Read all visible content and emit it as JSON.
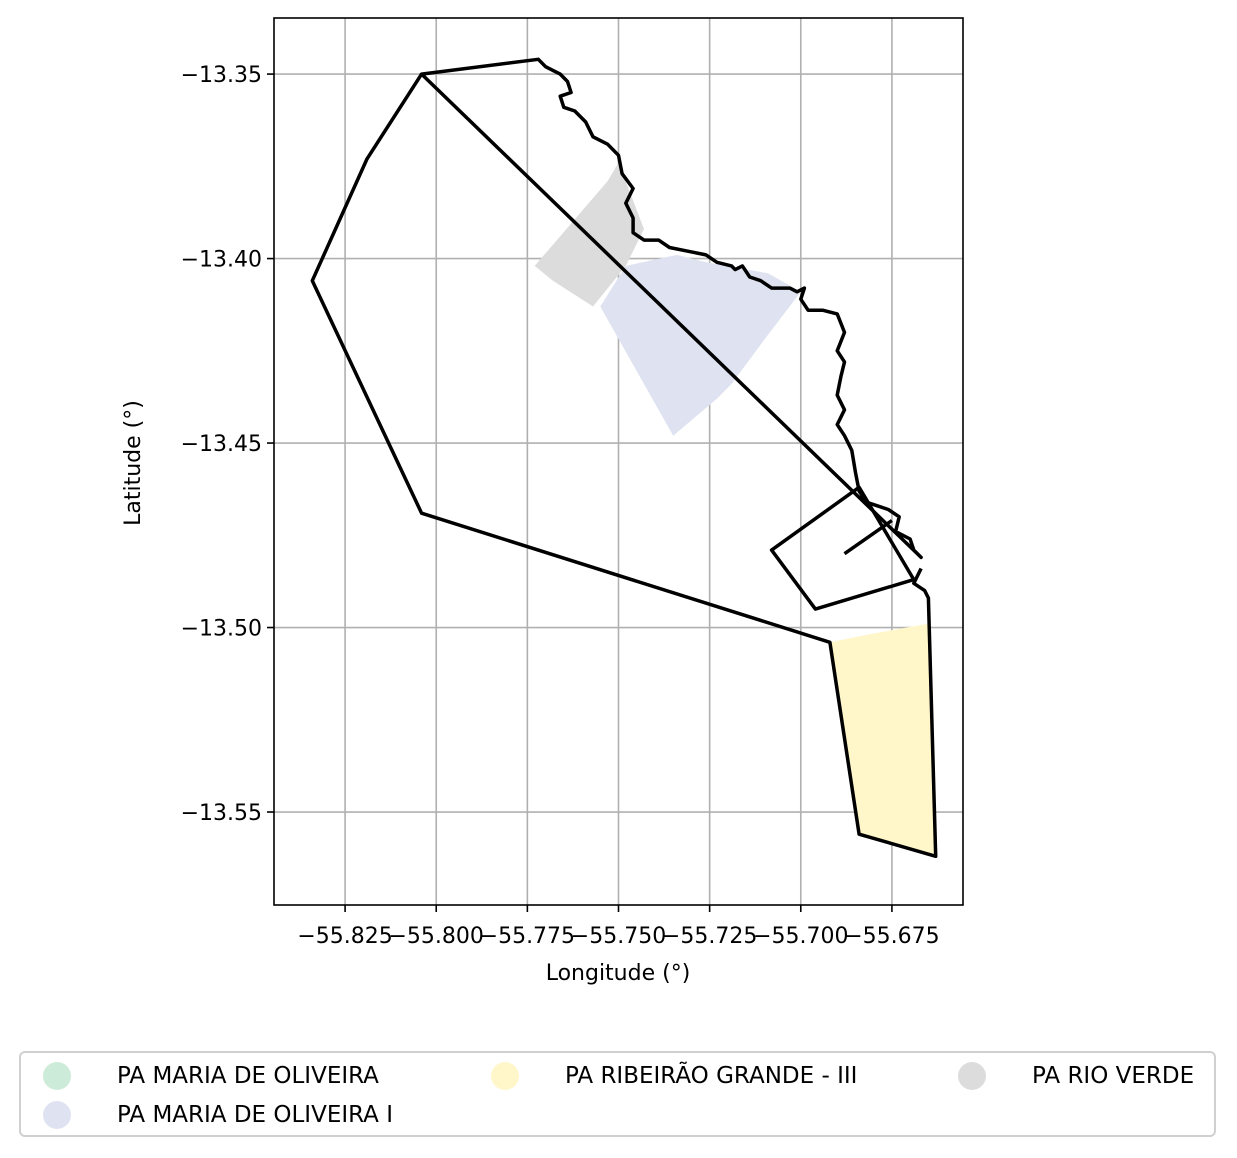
{
  "chart_data": {
    "type": "map",
    "xlabel": "Longitude (°)",
    "ylabel": "Latitude (°)",
    "xlim": [
      -55.8445,
      -55.6555
    ],
    "ylim": [
      -13.5752,
      -13.3348
    ],
    "grid": true,
    "x_ticks": [
      -55.825,
      -55.8,
      -55.775,
      -55.75,
      -55.725,
      -55.7,
      -55.675
    ],
    "y_ticks": [
      -13.35,
      -13.4,
      -13.45,
      -13.5,
      -13.55
    ],
    "x_tick_labels": [
      "−55.825",
      "−55.800",
      "−55.775",
      "−55.750",
      "−55.725",
      "−55.700",
      "−55.675"
    ],
    "y_tick_labels": [
      "−13.35",
      "−13.40",
      "−13.45",
      "−13.50",
      "−13.55"
    ],
    "legend": {
      "placement": "bottom",
      "entries": [
        {
          "name": "PA MARIA DE OLIVEIRA",
          "color": "#cdebd9"
        },
        {
          "name": "PA MARIA DE OLIVEIRA I",
          "color": "#dfe3f1"
        },
        {
          "name": "PA RIBEIRÃO GRANDE - III",
          "color": "#fff6c9"
        },
        {
          "name": "PA RIO VERDE",
          "color": "#dcdcdc"
        }
      ]
    },
    "areas": [
      {
        "name": "PA RIO VERDE",
        "color": "#dcdcdc",
        "coords": [
          [
            -55.773,
            -13.402
          ],
          [
            -55.753,
            -13.379
          ],
          [
            -55.75,
            -13.374
          ],
          [
            -55.743,
            -13.392
          ],
          [
            -55.748,
            -13.402
          ],
          [
            -55.757,
            -13.413
          ],
          [
            -55.768,
            -13.406
          ]
        ]
      },
      {
        "name": "PA MARIA DE OLIVEIRA I",
        "color": "#dfe3f1",
        "coords": [
          [
            -55.755,
            -13.413
          ],
          [
            -55.748,
            -13.402
          ],
          [
            -55.734,
            -13.399
          ],
          [
            -55.726,
            -13.401
          ],
          [
            -55.709,
            -13.404
          ],
          [
            -55.7,
            -13.409
          ],
          [
            -55.71,
            -13.422
          ],
          [
            -55.719,
            -13.434
          ],
          [
            -55.723,
            -13.438
          ],
          [
            -55.735,
            -13.448
          ],
          [
            -55.747,
            -13.427
          ]
        ]
      },
      {
        "name": "PA RIBEIRÃO GRANDE - III",
        "color": "#fff6c9",
        "coords": [
          [
            -55.692,
            -13.504
          ],
          [
            -55.682,
            -13.502
          ],
          [
            -55.671,
            -13.5
          ],
          [
            -55.665,
            -13.499
          ],
          [
            -55.663,
            -13.562
          ],
          [
            -55.684,
            -13.556
          ]
        ]
      }
    ],
    "boundaries": [
      {
        "closed": true,
        "coords": [
          [
            -55.804,
            -13.35
          ],
          [
            -55.772,
            -13.346
          ],
          [
            -55.77,
            -13.348
          ],
          [
            -55.768,
            -13.349
          ],
          [
            -55.766,
            -13.35
          ],
          [
            -55.764,
            -13.352
          ],
          [
            -55.763,
            -13.355
          ],
          [
            -55.766,
            -13.356
          ],
          [
            -55.765,
            -13.359
          ],
          [
            -55.762,
            -13.36
          ],
          [
            -55.759,
            -13.363
          ],
          [
            -55.757,
            -13.367
          ],
          [
            -55.753,
            -13.369
          ],
          [
            -55.75,
            -13.372
          ],
          [
            -55.749,
            -13.377
          ],
          [
            -55.746,
            -13.381
          ],
          [
            -55.748,
            -13.385
          ],
          [
            -55.746,
            -13.389
          ],
          [
            -55.746,
            -13.393
          ],
          [
            -55.743,
            -13.395
          ],
          [
            -55.739,
            -13.395
          ],
          [
            -55.736,
            -13.397
          ],
          [
            -55.731,
            -13.398
          ],
          [
            -55.726,
            -13.399
          ],
          [
            -55.723,
            -13.401
          ],
          [
            -55.719,
            -13.402
          ],
          [
            -55.718,
            -13.403
          ],
          [
            -55.716,
            -13.402
          ],
          [
            -55.714,
            -13.405
          ],
          [
            -55.711,
            -13.406
          ],
          [
            -55.708,
            -13.408
          ],
          [
            -55.703,
            -13.408
          ],
          [
            -55.701,
            -13.409
          ],
          [
            -55.699,
            -13.408
          ],
          [
            -55.7,
            -13.411
          ],
          [
            -55.698,
            -13.414
          ],
          [
            -55.694,
            -13.414
          ],
          [
            -55.69,
            -13.415
          ],
          [
            -55.688,
            -13.42
          ],
          [
            -55.69,
            -13.425
          ],
          [
            -55.688,
            -13.428
          ],
          [
            -55.689,
            -13.432
          ],
          [
            -55.69,
            -13.437
          ],
          [
            -55.688,
            -13.441
          ],
          [
            -55.69,
            -13.445
          ],
          [
            -55.688,
            -13.448
          ],
          [
            -55.686,
            -13.452
          ],
          [
            -55.685,
            -13.458
          ],
          [
            -55.684,
            -13.463
          ],
          [
            -55.682,
            -13.466
          ],
          [
            -55.679,
            -13.467
          ],
          [
            -55.676,
            -13.468
          ],
          [
            -55.673,
            -13.47
          ],
          [
            -55.674,
            -13.474
          ],
          [
            -55.67,
            -13.476
          ],
          [
            -55.669,
            -13.479
          ],
          [
            -55.667,
            -13.481
          ]
        ]
      },
      {
        "closed": false,
        "coords": [
          [
            -55.667,
            -13.484
          ],
          [
            -55.669,
            -13.488
          ],
          [
            -55.666,
            -13.49
          ],
          [
            -55.665,
            -13.492
          ],
          [
            -55.663,
            -13.562
          ],
          [
            -55.684,
            -13.556
          ],
          [
            -55.692,
            -13.504
          ],
          [
            -55.804,
            -13.469
          ],
          [
            -55.834,
            -13.406
          ],
          [
            -55.819,
            -13.373
          ],
          [
            -55.804,
            -13.35
          ]
        ]
      },
      {
        "closed": true,
        "coords": [
          [
            -55.684,
            -13.462
          ],
          [
            -55.708,
            -13.479
          ],
          [
            -55.696,
            -13.495
          ],
          [
            -55.669,
            -13.487
          ]
        ]
      },
      {
        "closed": false,
        "coords": [
          [
            -55.688,
            -13.48
          ],
          [
            -55.675,
            -13.471
          ]
        ]
      }
    ]
  }
}
